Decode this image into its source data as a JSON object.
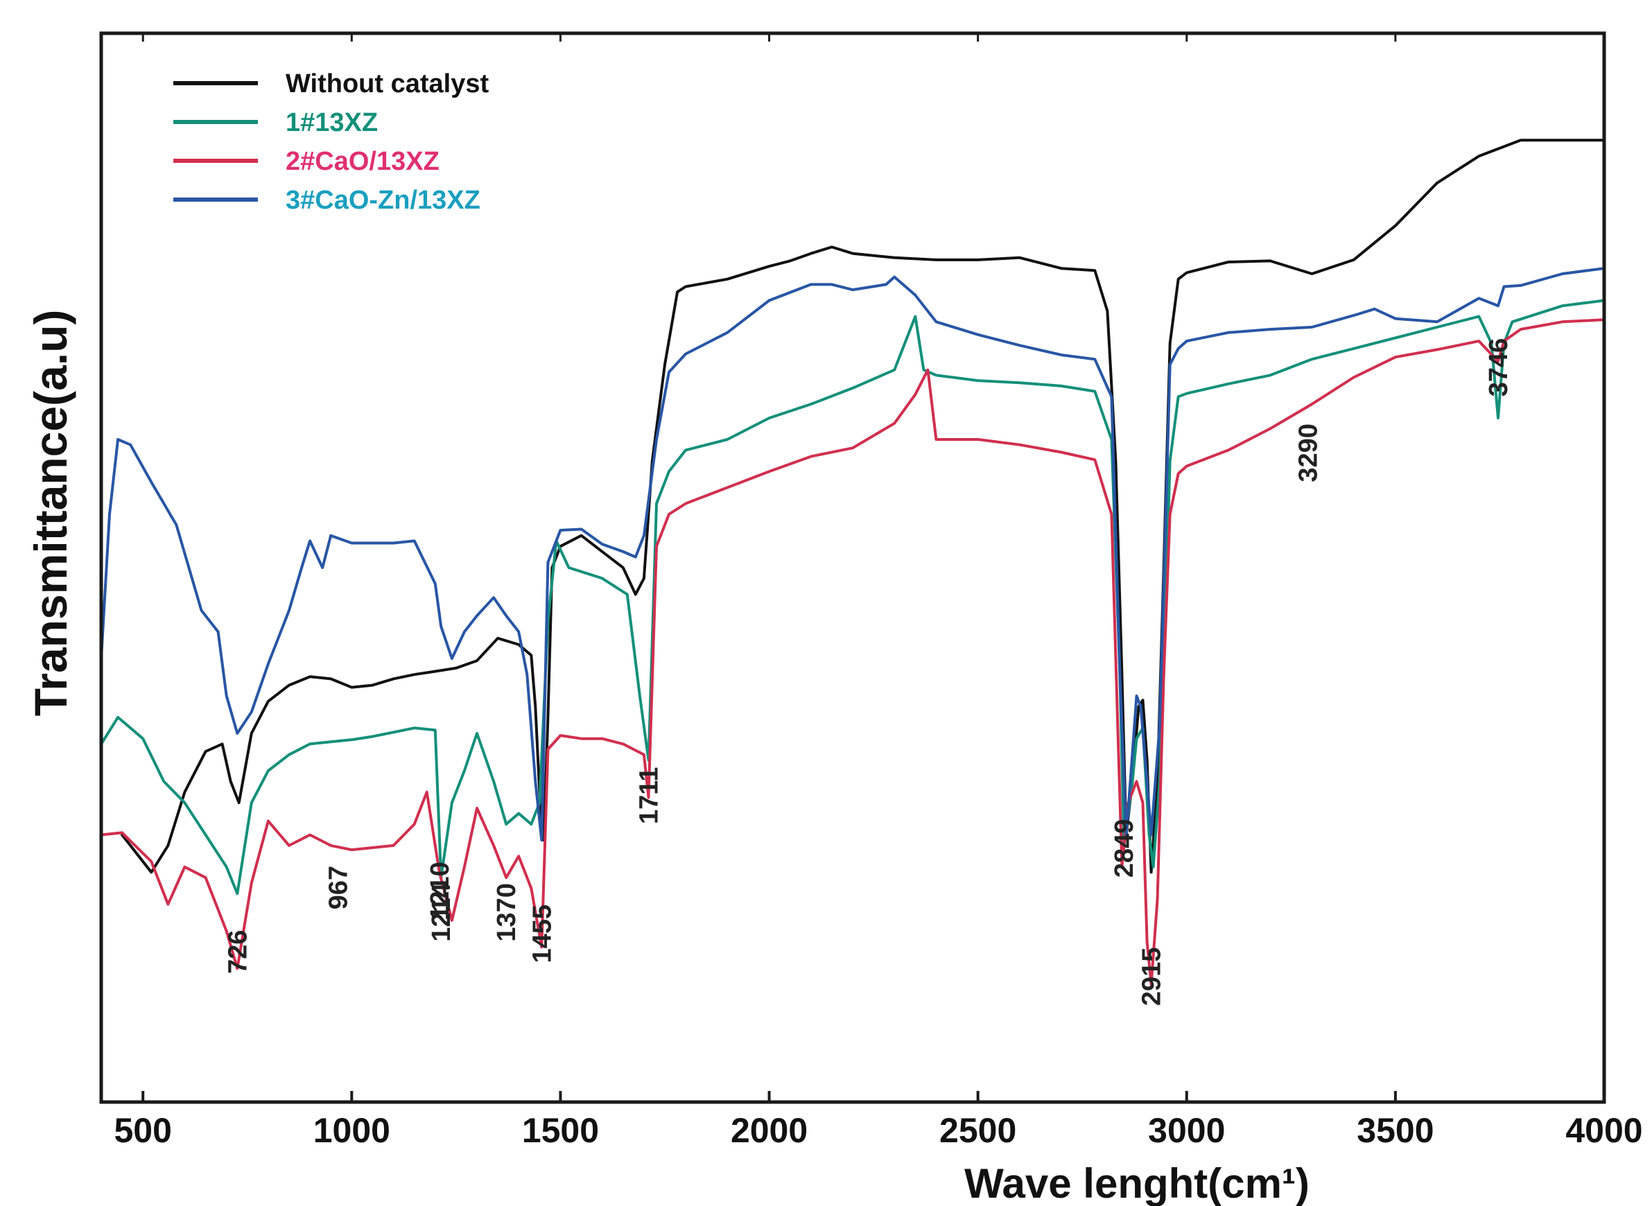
{
  "chart_data": {
    "type": "line",
    "title": "",
    "xlabel": "Wave lenght(cm¹)",
    "ylabel": "Transmittance(a.u)",
    "xlim": [
      400,
      4000
    ],
    "ylim": [
      0,
      100
    ],
    "x_ticks": [
      500,
      1000,
      1500,
      2000,
      2500,
      3000,
      3500,
      4000
    ],
    "x_tick_labels": [
      "500",
      "1000",
      "1500",
      "2000",
      "2500",
      "3000",
      "3500",
      "4000"
    ],
    "y_ticks_shown": false,
    "legend_position": "top-left",
    "series": [
      {
        "name": "Without catalyst",
        "color": "#111111",
        "points": [
          [
            450,
            25
          ],
          [
            520,
            21.5
          ],
          [
            560,
            24
          ],
          [
            600,
            29
          ],
          [
            650,
            32.8
          ],
          [
            690,
            33.5
          ],
          [
            710,
            30
          ],
          [
            730,
            28
          ],
          [
            760,
            34.5
          ],
          [
            800,
            37.5
          ],
          [
            850,
            39
          ],
          [
            900,
            39.8
          ],
          [
            950,
            39.6
          ],
          [
            1000,
            38.8
          ],
          [
            1050,
            39
          ],
          [
            1100,
            39.6
          ],
          [
            1150,
            40
          ],
          [
            1200,
            40.3
          ],
          [
            1250,
            40.6
          ],
          [
            1300,
            41.3
          ],
          [
            1350,
            43.4
          ],
          [
            1400,
            42.8
          ],
          [
            1430,
            41.8
          ],
          [
            1440,
            37
          ],
          [
            1450,
            29
          ],
          [
            1460,
            24.5
          ],
          [
            1470,
            36
          ],
          [
            1480,
            50
          ],
          [
            1500,
            52
          ],
          [
            1550,
            53
          ],
          [
            1600,
            51.5
          ],
          [
            1650,
            50
          ],
          [
            1680,
            47.5
          ],
          [
            1700,
            49
          ],
          [
            1720,
            60
          ],
          [
            1750,
            69
          ],
          [
            1780,
            75.8
          ],
          [
            1800,
            76.3
          ],
          [
            1900,
            77
          ],
          [
            2000,
            78.2
          ],
          [
            2050,
            78.7
          ],
          [
            2100,
            79.4
          ],
          [
            2150,
            80
          ],
          [
            2200,
            79.4
          ],
          [
            2300,
            79
          ],
          [
            2400,
            78.8
          ],
          [
            2500,
            78.8
          ],
          [
            2600,
            79
          ],
          [
            2700,
            78
          ],
          [
            2780,
            77.8
          ],
          [
            2810,
            74
          ],
          [
            2830,
            60
          ],
          [
            2845,
            40
          ],
          [
            2855,
            25
          ],
          [
            2870,
            30
          ],
          [
            2885,
            37
          ],
          [
            2895,
            37.6
          ],
          [
            2905,
            32
          ],
          [
            2915,
            21.5
          ],
          [
            2930,
            30
          ],
          [
            2945,
            50
          ],
          [
            2960,
            71
          ],
          [
            2980,
            77
          ],
          [
            3000,
            77.6
          ],
          [
            3100,
            78.6
          ],
          [
            3200,
            78.7
          ],
          [
            3300,
            77.5
          ],
          [
            3400,
            78.8
          ],
          [
            3500,
            82
          ],
          [
            3600,
            86
          ],
          [
            3700,
            88.5
          ],
          [
            3800,
            90
          ],
          [
            4000,
            90
          ]
        ]
      },
      {
        "name": "1#13XZ",
        "color": "#14907a",
        "points": [
          [
            400,
            33.5
          ],
          [
            440,
            36
          ],
          [
            500,
            34
          ],
          [
            550,
            30
          ],
          [
            600,
            28
          ],
          [
            650,
            25
          ],
          [
            700,
            22
          ],
          [
            726,
            19.5
          ],
          [
            760,
            28
          ],
          [
            800,
            31
          ],
          [
            850,
            32.5
          ],
          [
            900,
            33.5
          ],
          [
            950,
            33.7
          ],
          [
            1000,
            33.9
          ],
          [
            1050,
            34.2
          ],
          [
            1100,
            34.6
          ],
          [
            1150,
            35
          ],
          [
            1200,
            34.8
          ],
          [
            1214,
            21
          ],
          [
            1240,
            28
          ],
          [
            1270,
            31
          ],
          [
            1300,
            34.5
          ],
          [
            1340,
            30
          ],
          [
            1370,
            26
          ],
          [
            1400,
            27
          ],
          [
            1430,
            26
          ],
          [
            1450,
            28
          ],
          [
            1470,
            45
          ],
          [
            1490,
            52.5
          ],
          [
            1520,
            50
          ],
          [
            1560,
            49.5
          ],
          [
            1600,
            49
          ],
          [
            1660,
            47.5
          ],
          [
            1690,
            38
          ],
          [
            1711,
            32
          ],
          [
            1730,
            56
          ],
          [
            1760,
            59
          ],
          [
            1800,
            61
          ],
          [
            1900,
            62
          ],
          [
            2000,
            64
          ],
          [
            2100,
            65.3
          ],
          [
            2200,
            66.8
          ],
          [
            2300,
            68.5
          ],
          [
            2350,
            73.5
          ],
          [
            2370,
            68.5
          ],
          [
            2400,
            68
          ],
          [
            2500,
            67.5
          ],
          [
            2600,
            67.3
          ],
          [
            2700,
            67
          ],
          [
            2780,
            66.5
          ],
          [
            2820,
            62
          ],
          [
            2840,
            40
          ],
          [
            2850,
            24
          ],
          [
            2870,
            30
          ],
          [
            2880,
            34
          ],
          [
            2895,
            35
          ],
          [
            2910,
            25
          ],
          [
            2920,
            22
          ],
          [
            2935,
            30
          ],
          [
            2945,
            40
          ],
          [
            2960,
            60
          ],
          [
            2980,
            66
          ],
          [
            3000,
            66.3
          ],
          [
            3100,
            67.2
          ],
          [
            3200,
            68
          ],
          [
            3300,
            69.5
          ],
          [
            3400,
            70.5
          ],
          [
            3500,
            71.5
          ],
          [
            3600,
            72.5
          ],
          [
            3700,
            73.5
          ],
          [
            3730,
            71
          ],
          [
            3746,
            64
          ],
          [
            3760,
            71
          ],
          [
            3780,
            73
          ],
          [
            3900,
            74.5
          ],
          [
            4000,
            75
          ]
        ]
      },
      {
        "name": "2#CaO/13XZ",
        "color": "#d12f4e",
        "points": [
          [
            400,
            25
          ],
          [
            450,
            25.2
          ],
          [
            520,
            22.5
          ],
          [
            560,
            18.5
          ],
          [
            600,
            22
          ],
          [
            650,
            21
          ],
          [
            700,
            16
          ],
          [
            726,
            12.5
          ],
          [
            760,
            20.5
          ],
          [
            800,
            26.3
          ],
          [
            850,
            24
          ],
          [
            900,
            25
          ],
          [
            950,
            24
          ],
          [
            1000,
            23.6
          ],
          [
            1050,
            23.8
          ],
          [
            1100,
            24
          ],
          [
            1150,
            26
          ],
          [
            1180,
            29
          ],
          [
            1210,
            21.5
          ],
          [
            1240,
            17
          ],
          [
            1270,
            22
          ],
          [
            1300,
            27.5
          ],
          [
            1340,
            24
          ],
          [
            1370,
            21
          ],
          [
            1400,
            23
          ],
          [
            1430,
            20
          ],
          [
            1455,
            14.5
          ],
          [
            1470,
            33
          ],
          [
            1500,
            34.3
          ],
          [
            1550,
            34
          ],
          [
            1600,
            34
          ],
          [
            1650,
            33.5
          ],
          [
            1700,
            32.5
          ],
          [
            1711,
            28.5
          ],
          [
            1730,
            52
          ],
          [
            1760,
            55
          ],
          [
            1800,
            56
          ],
          [
            1900,
            57.5
          ],
          [
            2000,
            59
          ],
          [
            2100,
            60.4
          ],
          [
            2200,
            61.2
          ],
          [
            2300,
            63.5
          ],
          [
            2350,
            66.2
          ],
          [
            2380,
            68.5
          ],
          [
            2400,
            62
          ],
          [
            2500,
            62
          ],
          [
            2600,
            61.5
          ],
          [
            2700,
            60.8
          ],
          [
            2780,
            60.1
          ],
          [
            2820,
            55
          ],
          [
            2835,
            35
          ],
          [
            2845,
            22
          ],
          [
            2860,
            28
          ],
          [
            2880,
            30
          ],
          [
            2895,
            28
          ],
          [
            2905,
            15
          ],
          [
            2915,
            11
          ],
          [
            2930,
            19
          ],
          [
            2945,
            40
          ],
          [
            2960,
            55
          ],
          [
            2980,
            58.8
          ],
          [
            3000,
            59.5
          ],
          [
            3100,
            61
          ],
          [
            3200,
            63
          ],
          [
            3300,
            65.3
          ],
          [
            3400,
            67.8
          ],
          [
            3500,
            69.7
          ],
          [
            3600,
            70.4
          ],
          [
            3700,
            71.2
          ],
          [
            3746,
            69.3
          ],
          [
            3760,
            71.2
          ],
          [
            3800,
            72.3
          ],
          [
            3900,
            73
          ],
          [
            4000,
            73.2
          ]
        ]
      },
      {
        "name": "3#CaO-Zn/13XZ",
        "color": "#2856a5",
        "points": [
          [
            400,
            41.5
          ],
          [
            420,
            55
          ],
          [
            440,
            62
          ],
          [
            470,
            61.5
          ],
          [
            520,
            58
          ],
          [
            580,
            54
          ],
          [
            640,
            46
          ],
          [
            680,
            44
          ],
          [
            700,
            38
          ],
          [
            726,
            34.5
          ],
          [
            760,
            36.5
          ],
          [
            800,
            41
          ],
          [
            850,
            46
          ],
          [
            880,
            50
          ],
          [
            900,
            52.5
          ],
          [
            930,
            50
          ],
          [
            950,
            53
          ],
          [
            1000,
            52.3
          ],
          [
            1050,
            52.3
          ],
          [
            1100,
            52.3
          ],
          [
            1150,
            52.5
          ],
          [
            1200,
            48.5
          ],
          [
            1214,
            44.5
          ],
          [
            1240,
            41.5
          ],
          [
            1270,
            44
          ],
          [
            1300,
            45.5
          ],
          [
            1340,
            47.2
          ],
          [
            1370,
            45.5
          ],
          [
            1400,
            44
          ],
          [
            1420,
            40
          ],
          [
            1440,
            30
          ],
          [
            1455,
            24.5
          ],
          [
            1470,
            50.5
          ],
          [
            1500,
            53.5
          ],
          [
            1550,
            53.6
          ],
          [
            1600,
            52.2
          ],
          [
            1650,
            51.5
          ],
          [
            1680,
            51
          ],
          [
            1700,
            53
          ],
          [
            1730,
            62
          ],
          [
            1760,
            68.3
          ],
          [
            1800,
            70
          ],
          [
            1900,
            72
          ],
          [
            2000,
            75
          ],
          [
            2100,
            76.5
          ],
          [
            2150,
            76.5
          ],
          [
            2200,
            76
          ],
          [
            2280,
            76.5
          ],
          [
            2300,
            77.2
          ],
          [
            2350,
            75.5
          ],
          [
            2400,
            73
          ],
          [
            2500,
            71.8
          ],
          [
            2600,
            70.8
          ],
          [
            2700,
            69.9
          ],
          [
            2780,
            69.5
          ],
          [
            2820,
            66
          ],
          [
            2840,
            40
          ],
          [
            2855,
            25
          ],
          [
            2865,
            30
          ],
          [
            2880,
            38
          ],
          [
            2890,
            37
          ],
          [
            2905,
            30
          ],
          [
            2915,
            25
          ],
          [
            2935,
            35
          ],
          [
            2950,
            55
          ],
          [
            2960,
            69
          ],
          [
            2980,
            70.5
          ],
          [
            3000,
            71.2
          ],
          [
            3100,
            72
          ],
          [
            3200,
            72.3
          ],
          [
            3300,
            72.5
          ],
          [
            3400,
            73.6
          ],
          [
            3450,
            74.2
          ],
          [
            3500,
            73.3
          ],
          [
            3600,
            73
          ],
          [
            3700,
            75.2
          ],
          [
            3746,
            74.5
          ],
          [
            3760,
            76.3
          ],
          [
            3800,
            76.4
          ],
          [
            3900,
            77.5
          ],
          [
            4000,
            78
          ]
        ]
      }
    ],
    "annotations": [
      {
        "label": "726",
        "x": 726,
        "y": 12
      },
      {
        "label": "967",
        "x": 967,
        "y": 18
      },
      {
        "label": "1210",
        "x": 1210,
        "y": 17
      },
      {
        "label": "1214",
        "x": 1214,
        "y": 15
      },
      {
        "label": "1370",
        "x": 1370,
        "y": 15
      },
      {
        "label": "1455",
        "x": 1455,
        "y": 13
      },
      {
        "label": "1711",
        "x": 1711,
        "y": 26
      },
      {
        "label": "2849",
        "x": 2849,
        "y": 21
      },
      {
        "label": "2915",
        "x": 2915,
        "y": 9
      },
      {
        "label": "3290",
        "x": 3290,
        "y": 58
      },
      {
        "label": "3746",
        "x": 3746,
        "y": 66
      }
    ]
  }
}
